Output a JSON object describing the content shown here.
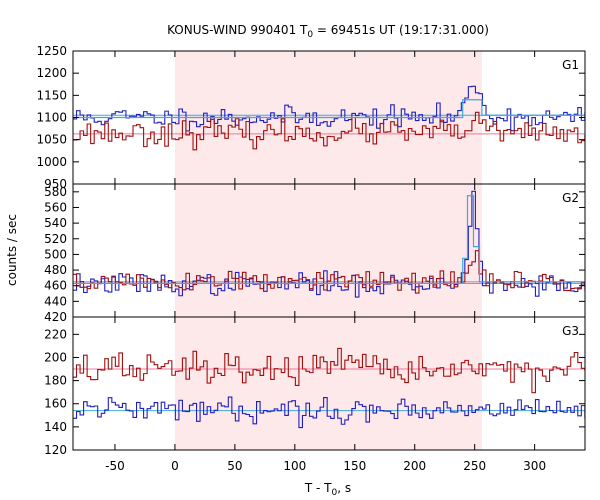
{
  "chart_data": {
    "type": "line",
    "title_main": "KONUS-WIND 990401 T",
    "title_sub": "0",
    "title_rest": " = 69451s UT (19:17:31.000)",
    "xlabel_main": "T - T",
    "xlabel_sub": "0",
    "xlabel_rest": ", s",
    "ylabel": "counts / sec",
    "xlim": [
      -85,
      342
    ],
    "xticks": [
      "-50",
      "0",
      "50",
      "100",
      "150",
      "200",
      "250",
      "300"
    ],
    "highlight_interval": [
      0,
      256
    ],
    "step_s": 2.944,
    "colors": {
      "blue": "#2020c0",
      "red": "#a01010",
      "light_blue": "#40a8d8",
      "pink": "#f07898",
      "shade": "#fde8ea",
      "axis": "#000000"
    },
    "panels": [
      {
        "label": "G1",
        "ylim": [
          950,
          1250
        ],
        "yticks": [
          "950",
          "1000",
          "1050",
          "1100",
          "1150",
          "1200",
          "1250"
        ],
        "series": [
          {
            "color": "blue",
            "base": 1100,
            "noise": 12,
            "seed": 11,
            "pulse": {
              "center": 250,
              "width": 6,
              "amp": 75
            }
          },
          {
            "color": "red",
            "base": 1065,
            "noise": 14,
            "seed": 23,
            "pulse": {
              "center": 250,
              "width": 5,
              "amp": 30
            }
          }
        ],
        "background_levels": [
          {
            "color": "pink",
            "value": 1063
          },
          {
            "color": "light_blue",
            "value": 1105
          }
        ],
        "fit_steps": [
          {
            "color": "light_blue",
            "x": [
              -85,
              240,
              240,
              256,
              256,
              342
            ],
            "y": [
              1100,
              1100,
              1140,
              1140,
              1105,
              1105
            ]
          }
        ]
      },
      {
        "label": "G2",
        "ylim": [
          420,
          590
        ],
        "yticks": [
          "420",
          "440",
          "460",
          "480",
          "500",
          "520",
          "540",
          "560",
          "580"
        ],
        "series": [
          {
            "color": "blue",
            "base": 462,
            "noise": 7,
            "seed": 37,
            "pulse": {
              "center": 249,
              "width": 4,
              "amp": 110
            }
          },
          {
            "color": "red",
            "base": 465,
            "noise": 7,
            "seed": 51,
            "pulse": {
              "center": 250,
              "width": 4,
              "amp": 35
            }
          }
        ],
        "background_levels": [
          {
            "color": "pink",
            "value": 465
          },
          {
            "color": "light_blue",
            "value": 463
          }
        ],
        "fit_steps": [
          {
            "color": "light_blue",
            "x": [
              -85,
              240,
              240,
              244,
              244,
              249,
              249,
              254,
              254,
              342
            ],
            "y": [
              463,
              463,
              495,
              495,
              575,
              575,
              510,
              510,
              465,
              465
            ]
          }
        ]
      },
      {
        "label": "G3",
        "ylim": [
          120,
          235
        ],
        "yticks": [
          "120",
          "140",
          "160",
          "180",
          "200",
          "220"
        ],
        "series": [
          {
            "color": "red",
            "base": 190,
            "noise": 7,
            "seed": 67,
            "pulse": null
          },
          {
            "color": "blue",
            "base": 155,
            "noise": 5,
            "seed": 79,
            "pulse": null
          }
        ],
        "background_levels": [
          {
            "color": "pink",
            "value": 190
          },
          {
            "color": "light_blue",
            "value": 154
          }
        ],
        "fit_steps": []
      }
    ]
  }
}
